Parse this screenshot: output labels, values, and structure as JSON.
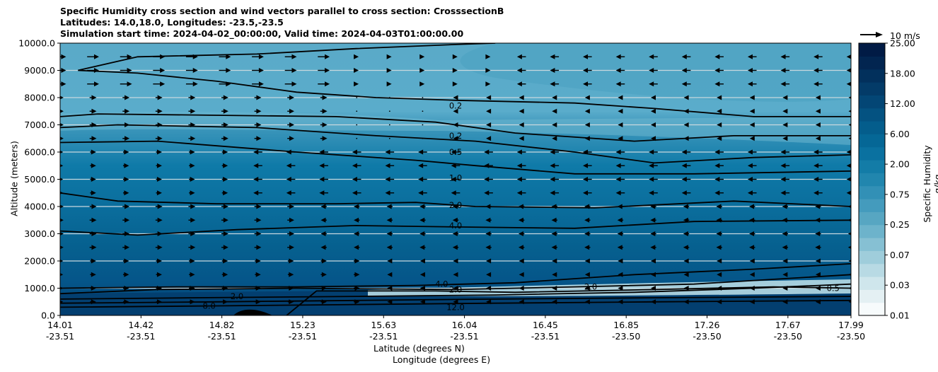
{
  "title_lines": [
    "Specific Humidity cross section and wind vectors parallel to cross section: CrosssectionB",
    "Latitudes: 14.0,18.0, Longitudes: -23.5,-23.5",
    "Simulation start time: 2024-04-02_00:00:00, Valid time: 2024-04-03T01:00:00.00"
  ],
  "chart_data": {
    "type": "heatmap",
    "title": "Specific Humidity cross section and wind vectors parallel to cross section: CrosssectionB",
    "ylabel": "Altitude (meters)",
    "xlabel_lat": "Latitude (degrees N)",
    "xlabel_lon": "Longitude (degrees E)",
    "ylim": [
      0,
      10000
    ],
    "y_ticks": [
      "0.0",
      "1000.0",
      "2000.0",
      "3000.0",
      "4000.0",
      "5000.0",
      "6000.0",
      "7000.0",
      "8000.0",
      "9000.0",
      "10000.0"
    ],
    "x_ticks_lat": [
      "14.01",
      "14.42",
      "14.82",
      "15.23",
      "15.63",
      "16.04",
      "16.45",
      "16.85",
      "17.26",
      "17.67",
      "17.99"
    ],
    "x_ticks_lon": [
      "-23.51",
      "-23.51",
      "-23.51",
      "-23.51",
      "-23.51",
      "-23.51",
      "-23.51",
      "-23.50",
      "-23.50",
      "-23.50",
      "-23.50"
    ],
    "colorbar_label": "Specific Humidity g/kg",
    "colorbar_ticks": [
      "0.01",
      "0.03",
      "0.07",
      "0.25",
      "0.75",
      "2.00",
      "6.00",
      "12.00",
      "18.00",
      "25.00"
    ],
    "colorbar_colors": [
      "#f7fbfc",
      "#e4f0f3",
      "#cfe6ec",
      "#b8dae4",
      "#9fcddb",
      "#86c0d3",
      "#6db3cb",
      "#57a6c2",
      "#449bbd",
      "#3290b6",
      "#2186ae",
      "#137ca7",
      "#0a71a0",
      "#056796",
      "#045d8c",
      "#045281",
      "#034675",
      "#033b68",
      "#02305c",
      "#022550",
      "#011b45"
    ],
    "contour_labels": [
      {
        "label": "0.2",
        "lat": 16.0,
        "alt": 7700
      },
      {
        "label": "0.2",
        "lat": 16.0,
        "alt": 6600
      },
      {
        "label": "0.5",
        "lat": 16.0,
        "alt": 6000
      },
      {
        "label": "1.0",
        "lat": 16.0,
        "alt": 5050
      },
      {
        "label": "2.0",
        "lat": 16.0,
        "alt": 4050
      },
      {
        "label": "4.0",
        "lat": 16.0,
        "alt": 3300
      },
      {
        "label": "4.0",
        "lat": 15.93,
        "alt": 1150
      },
      {
        "label": "2.0",
        "lat": 16.0,
        "alt": 950
      },
      {
        "label": "2.0",
        "lat": 16.68,
        "alt": 1050
      },
      {
        "label": "12.0",
        "lat": 16.0,
        "alt": 300
      },
      {
        "label": "8.0",
        "lat": 14.76,
        "alt": 350
      },
      {
        "label": "2.0",
        "lat": 14.9,
        "alt": 700
      },
      {
        "label": "0.5",
        "lat": 17.9,
        "alt": 1000
      }
    ],
    "wind_key": "10 m/s",
    "grid": "horizontal"
  }
}
